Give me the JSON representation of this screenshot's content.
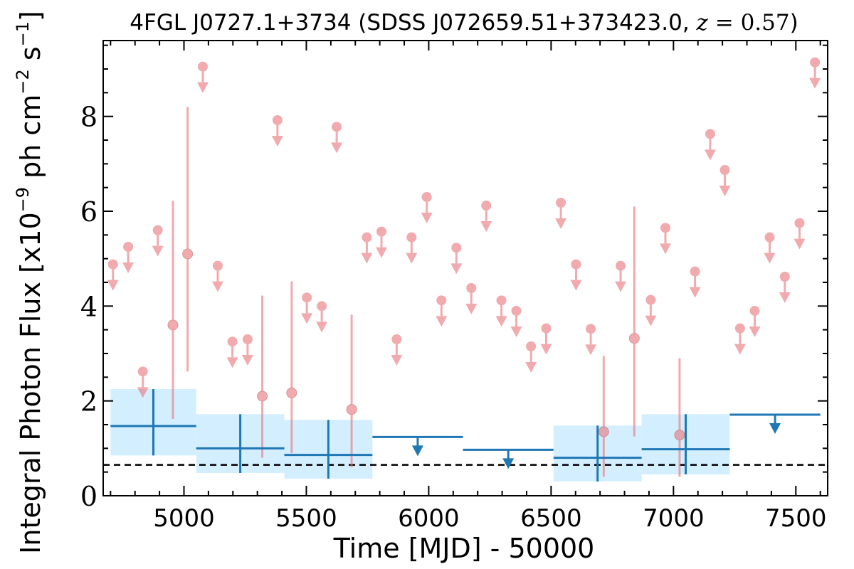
{
  "chart_data": {
    "type": "scatter",
    "title": "4FGL J0727.1+3734 (SDSS J072659.51+373423.0, z = 0.57)",
    "title_parts": {
      "pre": "4FGL J0727.1+3734 (SDSS J072659.51+373423.0, ",
      "z": "z",
      "eq": " = 0.57",
      "post": ")"
    },
    "xlabel": "Time [MJD] - 50000",
    "ylabel": "Integral Photon Flux [x10",
    "ylabel_exp1": "−9",
    "ylabel_mid": " ph cm",
    "ylabel_exp2": "−2",
    "ylabel_mid2": " s",
    "ylabel_exp3": "−1",
    "ylabel_end": "]",
    "xlim": [
      4670,
      7630
    ],
    "ylim": [
      0,
      9.6
    ],
    "xticks": [
      5000,
      5500,
      6000,
      6500,
      7000,
      7500
    ],
    "xtick_labels": [
      "5000",
      "5500",
      "6000",
      "6500",
      "7000",
      "7500"
    ],
    "yticks": [
      0,
      2,
      4,
      6,
      8
    ],
    "ytick_labels": [
      "0",
      "2",
      "4",
      "6",
      "8"
    ],
    "reference_line": 0.65,
    "colors": {
      "short_bins": "#e8737a",
      "long_bins": "#1f77b4",
      "band_fill": "#d3efff",
      "reference": "#000000"
    },
    "detections_short": [
      {
        "x": 4955,
        "y": 3.6,
        "lo": 1.62,
        "hi": 6.22
      },
      {
        "x": 5015,
        "y": 5.1,
        "lo": 2.62,
        "hi": 8.2
      },
      {
        "x": 5320,
        "y": 2.1,
        "lo": 0.8,
        "hi": 4.22
      },
      {
        "x": 5440,
        "y": 2.17,
        "lo": 0.9,
        "hi": 4.52
      },
      {
        "x": 5685,
        "y": 1.82,
        "lo": 0.6,
        "hi": 3.82
      },
      {
        "x": 6715,
        "y": 1.35,
        "lo": 0.4,
        "hi": 2.95
      },
      {
        "x": 6840,
        "y": 3.32,
        "lo": 1.25,
        "hi": 6.1
      },
      {
        "x": 7025,
        "y": 1.28,
        "lo": 0.4,
        "hi": 2.9
      }
    ],
    "upper_limits_short": [
      {
        "x": 4710,
        "y": 4.88
      },
      {
        "x": 4772,
        "y": 5.25
      },
      {
        "x": 4832,
        "y": 2.62
      },
      {
        "x": 4893,
        "y": 5.6
      },
      {
        "x": 5077,
        "y": 9.05
      },
      {
        "x": 5138,
        "y": 4.85
      },
      {
        "x": 5198,
        "y": 3.25
      },
      {
        "x": 5260,
        "y": 3.3
      },
      {
        "x": 5382,
        "y": 7.92
      },
      {
        "x": 5502,
        "y": 4.18
      },
      {
        "x": 5563,
        "y": 4.0
      },
      {
        "x": 5624,
        "y": 7.78
      },
      {
        "x": 5747,
        "y": 5.45
      },
      {
        "x": 5807,
        "y": 5.57
      },
      {
        "x": 5869,
        "y": 3.3
      },
      {
        "x": 5930,
        "y": 5.45
      },
      {
        "x": 5992,
        "y": 6.3
      },
      {
        "x": 6052,
        "y": 4.12
      },
      {
        "x": 6113,
        "y": 5.23
      },
      {
        "x": 6174,
        "y": 4.38
      },
      {
        "x": 6235,
        "y": 6.12
      },
      {
        "x": 6297,
        "y": 4.12
      },
      {
        "x": 6358,
        "y": 3.9
      },
      {
        "x": 6418,
        "y": 3.15
      },
      {
        "x": 6480,
        "y": 3.53
      },
      {
        "x": 6540,
        "y": 6.18
      },
      {
        "x": 6602,
        "y": 4.88
      },
      {
        "x": 6662,
        "y": 3.52
      },
      {
        "x": 6784,
        "y": 4.85
      },
      {
        "x": 6907,
        "y": 4.13
      },
      {
        "x": 6967,
        "y": 5.65
      },
      {
        "x": 7088,
        "y": 4.73
      },
      {
        "x": 7150,
        "y": 7.63
      },
      {
        "x": 7210,
        "y": 6.87
      },
      {
        "x": 7272,
        "y": 3.53
      },
      {
        "x": 7332,
        "y": 3.9
      },
      {
        "x": 7393,
        "y": 5.45
      },
      {
        "x": 7455,
        "y": 4.62
      },
      {
        "x": 7515,
        "y": 5.75
      },
      {
        "x": 7578,
        "y": 9.14
      }
    ],
    "detections_long": [
      {
        "x0": 4700,
        "x1": 5050,
        "xc": 4875,
        "y": 1.47,
        "lo": 0.85,
        "hi": 2.25
      },
      {
        "x0": 5050,
        "x1": 5410,
        "xc": 5230,
        "y": 1.0,
        "lo": 0.48,
        "hi": 1.72
      },
      {
        "x0": 5410,
        "x1": 5770,
        "xc": 5590,
        "y": 0.86,
        "lo": 0.36,
        "hi": 1.6
      },
      {
        "x0": 6510,
        "x1": 6870,
        "xc": 6690,
        "y": 0.8,
        "lo": 0.3,
        "hi": 1.48
      },
      {
        "x0": 6870,
        "x1": 7230,
        "xc": 7050,
        "y": 0.98,
        "lo": 0.45,
        "hi": 1.72
      }
    ],
    "upper_limits_long": [
      {
        "x0": 5770,
        "x1": 6140,
        "xc": 5955,
        "y": 1.24
      },
      {
        "x0": 6140,
        "x1": 6510,
        "xc": 6325,
        "y": 0.97
      },
      {
        "x0": 7230,
        "x1": 7600,
        "xc": 7415,
        "y": 1.71
      }
    ]
  }
}
